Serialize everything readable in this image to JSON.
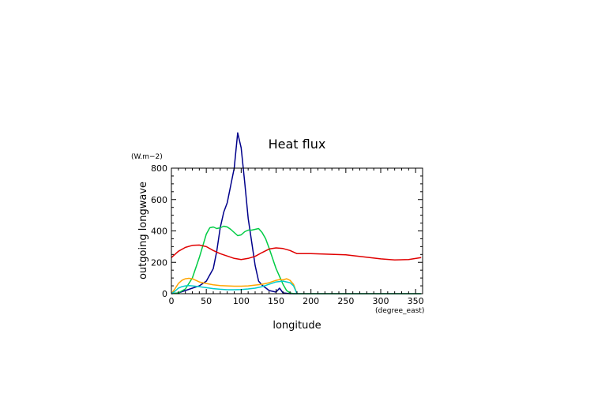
{
  "chart_data": {
    "type": "line",
    "title": "Heat flux",
    "xlabel": "longitude",
    "ylabel": "outgoing longwave",
    "x_unit": "(degree_east)",
    "y_unit": "(W.m−2)",
    "xlim": [
      0,
      360
    ],
    "ylim": [
      0,
      800
    ],
    "x_ticks": [
      0,
      50,
      100,
      150,
      200,
      250,
      300,
      350
    ],
    "y_ticks": [
      0,
      200,
      400,
      600,
      800
    ],
    "grid": false,
    "series": [
      {
        "color": "#00008b",
        "x": [
          0,
          10,
          20,
          30,
          40,
          50,
          60,
          65,
          70,
          75,
          80,
          85,
          90,
          95,
          100,
          105,
          110,
          115,
          120,
          125,
          130,
          140,
          150,
          155,
          160,
          170,
          180,
          200,
          250,
          300,
          358
        ],
        "y": [
          0,
          5,
          20,
          35,
          50,
          80,
          160,
          270,
          420,
          520,
          580,
          690,
          800,
          1025,
          930,
          710,
          480,
          330,
          180,
          80,
          55,
          20,
          10,
          35,
          5,
          0,
          0,
          0,
          0,
          0,
          0
        ]
      },
      {
        "color": "#00cc44",
        "x": [
          0,
          10,
          20,
          30,
          40,
          50,
          55,
          60,
          65,
          70,
          75,
          80,
          85,
          90,
          95,
          100,
          105,
          110,
          115,
          120,
          125,
          130,
          135,
          140,
          150,
          160,
          165,
          170,
          175,
          180,
          200,
          250,
          300,
          358
        ],
        "y": [
          0,
          5,
          30,
          100,
          230,
          380,
          420,
          425,
          415,
          420,
          430,
          425,
          410,
          390,
          370,
          375,
          395,
          405,
          405,
          410,
          415,
          390,
          350,
          290,
          160,
          60,
          20,
          5,
          0,
          0,
          0,
          0,
          0,
          0
        ]
      },
      {
        "color": "#e00000",
        "x": [
          0,
          10,
          20,
          30,
          40,
          50,
          60,
          70,
          80,
          90,
          100,
          110,
          120,
          130,
          140,
          150,
          160,
          170,
          180,
          200,
          250,
          300,
          320,
          340,
          358
        ],
        "y": [
          230,
          270,
          295,
          308,
          310,
          300,
          275,
          255,
          240,
          225,
          218,
          225,
          238,
          262,
          285,
          292,
          288,
          275,
          255,
          255,
          248,
          222,
          215,
          218,
          230
        ]
      },
      {
        "color": "#ffa500",
        "x": [
          0,
          5,
          10,
          15,
          20,
          25,
          30,
          35,
          40,
          50,
          60,
          70,
          80,
          90,
          100,
          110,
          120,
          130,
          140,
          150,
          155,
          160,
          165,
          170,
          175,
          180,
          200,
          358
        ],
        "y": [
          0,
          30,
          65,
          85,
          95,
          98,
          95,
          85,
          75,
          65,
          57,
          52,
          50,
          48,
          48,
          50,
          55,
          60,
          70,
          85,
          90,
          88,
          95,
          85,
          60,
          0,
          0,
          0
        ]
      },
      {
        "color": "#00cccc",
        "x": [
          0,
          5,
          10,
          15,
          20,
          25,
          30,
          40,
          50,
          60,
          70,
          80,
          90,
          100,
          110,
          120,
          130,
          140,
          150,
          160,
          170,
          175,
          180,
          200,
          358
        ],
        "y": [
          0,
          15,
          35,
          45,
          50,
          52,
          50,
          45,
          38,
          32,
          28,
          25,
          25,
          26,
          30,
          35,
          45,
          60,
          75,
          80,
          70,
          50,
          0,
          0,
          0
        ]
      }
    ]
  }
}
